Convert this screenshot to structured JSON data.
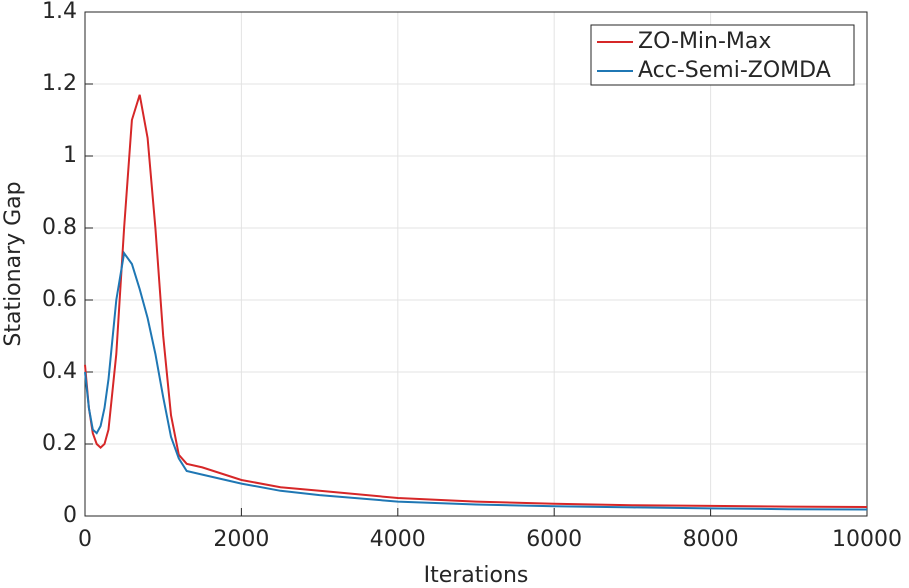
{
  "chart_data": {
    "type": "line",
    "x_label": "Iterations",
    "y_label": "Stationary Gap",
    "x": [
      0,
      50,
      100,
      150,
      200,
      250,
      300,
      400,
      500,
      600,
      700,
      800,
      900,
      1000,
      1100,
      1200,
      1300,
      1500,
      2000,
      2500,
      3000,
      4000,
      5000,
      6000,
      7000,
      8000,
      9000,
      10000
    ],
    "series": [
      {
        "name": "ZO-Min-Max",
        "color": "#d62728",
        "values": [
          0.42,
          0.3,
          0.23,
          0.2,
          0.19,
          0.2,
          0.24,
          0.45,
          0.8,
          1.1,
          1.17,
          1.05,
          0.8,
          0.5,
          0.28,
          0.17,
          0.145,
          0.135,
          0.1,
          0.08,
          0.07,
          0.05,
          0.04,
          0.034,
          0.03,
          0.028,
          0.026,
          0.025
        ]
      },
      {
        "name": "Acc-Semi-ZOMDA",
        "color": "#1f77b4",
        "values": [
          0.4,
          0.3,
          0.24,
          0.23,
          0.25,
          0.3,
          0.38,
          0.6,
          0.73,
          0.7,
          0.63,
          0.55,
          0.45,
          0.33,
          0.22,
          0.16,
          0.125,
          0.115,
          0.09,
          0.07,
          0.058,
          0.04,
          0.032,
          0.027,
          0.024,
          0.021,
          0.019,
          0.018
        ]
      }
    ],
    "xlim": [
      0,
      10000
    ],
    "xticks": [
      0,
      2000,
      4000,
      6000,
      8000,
      10000
    ],
    "ylim": [
      0,
      1.4
    ],
    "yticks": [
      0,
      0.2,
      0.4,
      0.6,
      0.8,
      1,
      1.2,
      1.4
    ],
    "grid": true,
    "legend": "upper-right"
  }
}
